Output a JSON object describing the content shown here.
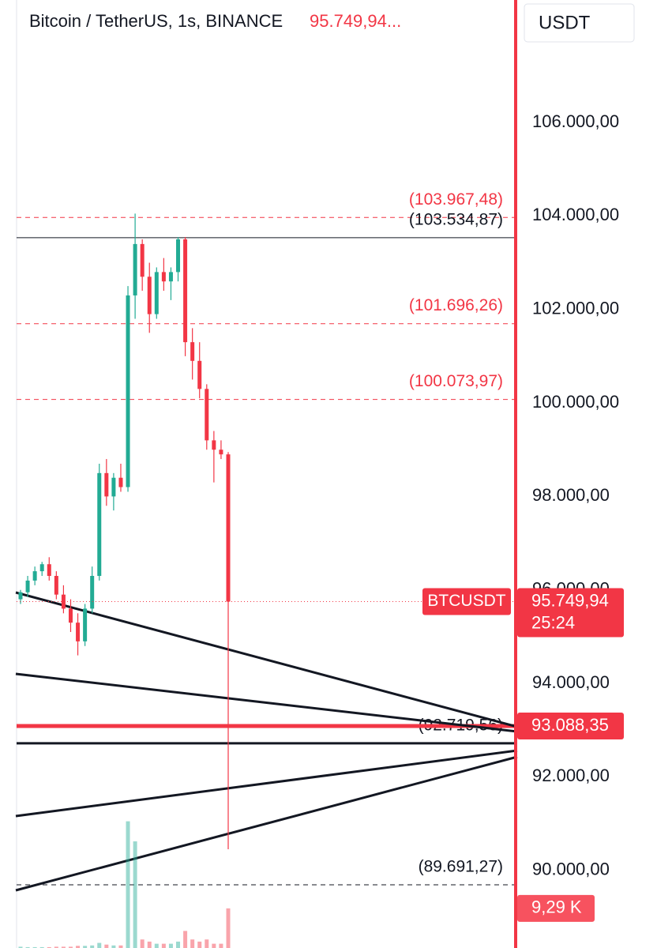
{
  "chart_data": {
    "type": "candlestick",
    "title": "Bitcoin / TetherUS, 1s, BINANCE",
    "header_price": "95.749,94...",
    "currency": "USDT",
    "up_color": "#22ab94",
    "down_color": "#f23645",
    "ylim": [
      88340,
      108620
    ],
    "yticks": [
      {
        "value": 90000,
        "label": "90.000,00"
      },
      {
        "value": 92000,
        "label": "92.000,00"
      },
      {
        "value": 94000,
        "label": "94.000,00"
      },
      {
        "value": 96000,
        "label": "96.000,00"
      },
      {
        "value": 98000,
        "label": "98.000,00"
      },
      {
        "value": 100000,
        "label": "100.000,00"
      },
      {
        "value": 102000,
        "label": "102.000,00"
      },
      {
        "value": 104000,
        "label": "104.000,00"
      },
      {
        "value": 106000,
        "label": "106.000,00"
      }
    ],
    "ohlc": [
      [
        95800,
        96000,
        95700,
        95950
      ],
      [
        95950,
        96300,
        95850,
        96200
      ],
      [
        96200,
        96500,
        96100,
        96400
      ],
      [
        96400,
        96600,
        96300,
        96550
      ],
      [
        96550,
        96700,
        96200,
        96300
      ],
      [
        96300,
        96400,
        95800,
        95900
      ],
      [
        95900,
        96100,
        95500,
        95600
      ],
      [
        95600,
        95800,
        95100,
        95300
      ],
      [
        95300,
        95500,
        94600,
        94900
      ],
      [
        94900,
        95700,
        94800,
        95600
      ],
      [
        95600,
        96500,
        95500,
        96300
      ],
      [
        96300,
        98700,
        96200,
        98500
      ],
      [
        98500,
        98800,
        97800,
        98000
      ],
      [
        98000,
        98500,
        97700,
        98400
      ],
      [
        98400,
        98700,
        98100,
        98200
      ],
      [
        98200,
        102500,
        98100,
        102300
      ],
      [
        102300,
        104050,
        101800,
        103400
      ],
      [
        103400,
        103500,
        102400,
        102700
      ],
      [
        102700,
        103000,
        101500,
        101900
      ],
      [
        101900,
        102900,
        101800,
        102800
      ],
      [
        102800,
        103100,
        102400,
        102600
      ],
      [
        102600,
        102900,
        102200,
        102800
      ],
      [
        102800,
        103550,
        102600,
        103500
      ],
      [
        103500,
        103550,
        101000,
        101300
      ],
      [
        101300,
        101600,
        100500,
        100900
      ],
      [
        100900,
        101300,
        100100,
        100300
      ],
      [
        100300,
        100400,
        99000,
        99200
      ],
      [
        99200,
        99400,
        98300,
        99000
      ],
      [
        99000,
        99200,
        98800,
        98900
      ],
      [
        98900,
        98950,
        90452,
        95749.94
      ]
    ],
    "volume": [
      0.3,
      0.2,
      0.2,
      0.2,
      0.2,
      0.3,
      0.3,
      0.3,
      0.5,
      0.5,
      0.6,
      1.2,
      0.8,
      0.6,
      0.6,
      29.7,
      25,
      2,
      1.5,
      1,
      1,
      1,
      1.5,
      4,
      2,
      1.5,
      2,
      1,
      1,
      9.29
    ],
    "vlim": [
      0,
      100
    ],
    "volume_label": {
      "value": 9.29,
      "label": "9,29 K"
    },
    "levels": [
      {
        "value": 103967.48,
        "label": "(103.967,48)",
        "color": "#f23645",
        "style": "dashed"
      },
      {
        "value": 103534.87,
        "label": "(103.534,87)",
        "color": "#131722",
        "style": "solid"
      },
      {
        "value": 101696.26,
        "label": "(101.696,26)",
        "color": "#f23645",
        "style": "dashed"
      },
      {
        "value": 100073.97,
        "label": "(100.073,97)",
        "color": "#f23645",
        "style": "dashed"
      },
      {
        "value": 92719.56,
        "label": "(92.719,56)",
        "color": "#131722",
        "style": "thick"
      },
      {
        "value": 89691.27,
        "label": "(89.691,27)",
        "color": "#131722",
        "style": "dashed"
      }
    ],
    "alert_line": {
      "value": 93088.35,
      "label": "93.088,35",
      "color": "#f23645"
    },
    "last": {
      "value": 95749.94,
      "label": "95.749,94",
      "countdown": "25:24",
      "symbol": "BTCUSDT"
    }
  }
}
